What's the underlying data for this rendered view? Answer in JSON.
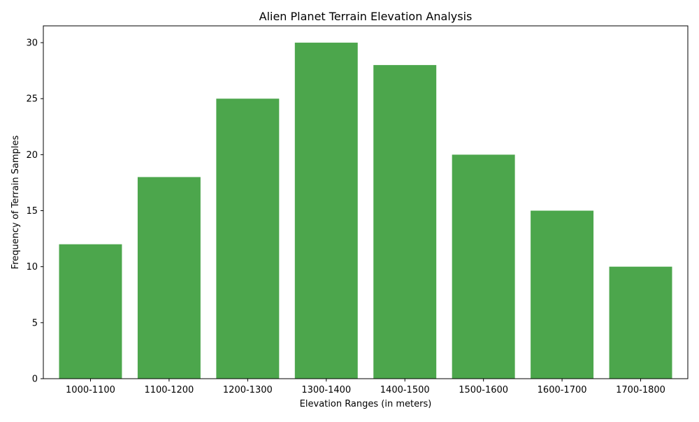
{
  "chart_data": {
    "type": "bar",
    "title": "Alien Planet Terrain Elevation Analysis",
    "xlabel": "Elevation Ranges (in meters)",
    "ylabel": "Frequency of Terrain Samples",
    "categories": [
      "1000-1100",
      "1100-1200",
      "1200-1300",
      "1300-1400",
      "1400-1500",
      "1500-1600",
      "1600-1700",
      "1700-1800"
    ],
    "values": [
      12,
      18,
      25,
      30,
      28,
      20,
      15,
      10
    ],
    "ylim": [
      0,
      31.5
    ],
    "yticks": [
      0,
      5,
      10,
      15,
      20,
      25,
      30
    ],
    "grid": false,
    "legend": "none",
    "bar_color": "#4ca64c"
  }
}
